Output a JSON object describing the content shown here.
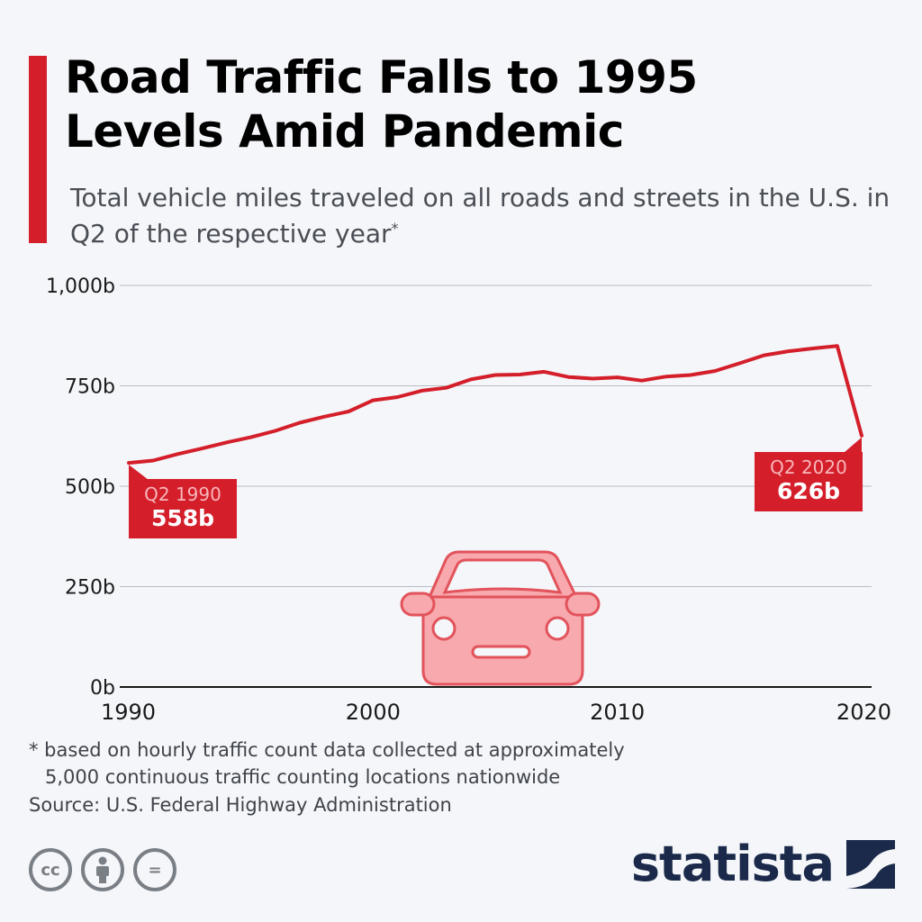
{
  "header": {
    "title_line1": "Road Traffic Falls to 1995",
    "title_line2": "Levels Amid Pandemic",
    "subtitle": "Total vehicle miles traveled on all roads and streets in the U.S. in Q2 of the respective year",
    "subtitle_mark": "*"
  },
  "chart_data": {
    "type": "line",
    "title": "Road Traffic Falls to 1995 Levels Amid Pandemic",
    "subtitle": "Total vehicle miles traveled on all roads and streets in the U.S. in Q2 of the respective year",
    "xlabel": "",
    "ylabel": "",
    "x_ticks": [
      "1990",
      "2000",
      "2010",
      "2020"
    ],
    "x_tick_values": [
      1990,
      2000,
      2010,
      2020
    ],
    "y_ticks": [
      "0b",
      "250b",
      "500b",
      "750b",
      "1,000b"
    ],
    "y_tick_values": [
      0,
      250,
      500,
      750,
      1000
    ],
    "xlim": [
      1990,
      2020
    ],
    "ylim": [
      0,
      1000
    ],
    "grid": true,
    "line_color": "#d41f2b",
    "x": [
      1990,
      1991,
      1992,
      1993,
      1994,
      1995,
      1996,
      1997,
      1998,
      1999,
      2000,
      2001,
      2002,
      2003,
      2004,
      2005,
      2006,
      2007,
      2008,
      2009,
      2010,
      2011,
      2012,
      2013,
      2014,
      2015,
      2016,
      2017,
      2018,
      2019,
      2020
    ],
    "series": [
      {
        "values": [
          558,
          564,
          580,
          594,
          609,
          622,
          638,
          658,
          673,
          686,
          714,
          722,
          738,
          745,
          766,
          777,
          778,
          785,
          772,
          768,
          771,
          763,
          773,
          777,
          787,
          806,
          826,
          836,
          843,
          849,
          626
        ]
      }
    ],
    "annotations": [
      {
        "x": 1990,
        "label": "Q2 1990",
        "value_label": "558b"
      },
      {
        "x": 2020,
        "label": "Q2 2020",
        "value_label": "626b"
      }
    ]
  },
  "footnote": {
    "line1": "* based on hourly traffic count data collected at approximately",
    "line2": "5,000 continuous traffic counting locations nationwide"
  },
  "source": "Source: U.S. Federal Highway Administration",
  "license_icons": [
    {
      "icon": "cc-icon",
      "glyph": "cc"
    },
    {
      "icon": "attribution-icon",
      "glyph": "὆4"
    },
    {
      "icon": "no-derivatives-icon",
      "glyph": "="
    }
  ],
  "brand": {
    "name": "statista",
    "color": "#1b2a4a"
  },
  "colors": {
    "accent": "#d41f2b",
    "car_fill": "#f7a9ad",
    "car_stroke": "#e2535b",
    "grid": "#b9bdc4"
  }
}
